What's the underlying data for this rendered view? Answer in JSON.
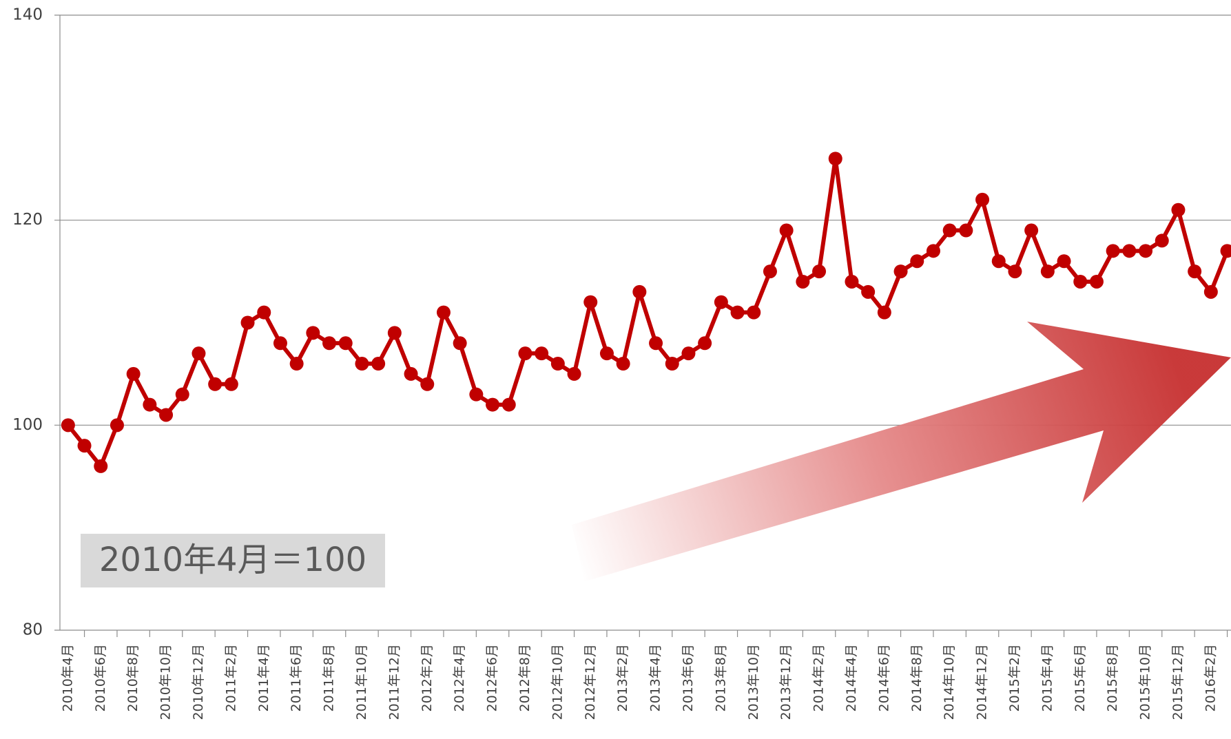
{
  "chart_data": {
    "type": "line",
    "annotation": "2010年4月＝100",
    "categories": [
      "2010年4月",
      null,
      "2010年6月",
      null,
      "2010年8月",
      null,
      "2010年10月",
      null,
      "2010年12月",
      null,
      "2011年2月",
      null,
      "2011年4月",
      null,
      "2011年6月",
      null,
      "2011年8月",
      null,
      "2011年10月",
      null,
      "2011年12月",
      null,
      "2012年2月",
      null,
      "2012年4月",
      null,
      "2012年6月",
      null,
      "2012年8月",
      null,
      "2012年10月",
      null,
      "2012年12月",
      null,
      "2013年2月",
      null,
      "2013年4月",
      null,
      "2013年6月",
      null,
      "2013年8月",
      null,
      "2013年10月",
      null,
      "2013年12月",
      null,
      "2014年2月",
      null,
      "2014年4月",
      null,
      "2014年6月",
      null,
      "2014年8月",
      null,
      "2014年10月",
      null,
      "2014年12月",
      null,
      "2015年2月",
      null,
      "2015年4月",
      null,
      "2015年6月",
      null,
      "2015年8月",
      null,
      "2015年10月",
      null,
      "2015年12月",
      null,
      "2016年2月",
      null
    ],
    "values": [
      100,
      98,
      96,
      100,
      105,
      102,
      101,
      103,
      107,
      104,
      104,
      110,
      111,
      108,
      106,
      109,
      108,
      108,
      106,
      106,
      109,
      105,
      104,
      111,
      108,
      103,
      102,
      102,
      107,
      107,
      106,
      105,
      112,
      107,
      106,
      113,
      108,
      106,
      107,
      108,
      112,
      111,
      111,
      115,
      119,
      114,
      115,
      126,
      114,
      113,
      111,
      115,
      116,
      117,
      119,
      119,
      122,
      116,
      115,
      119,
      115,
      116,
      114,
      114,
      117,
      117,
      117,
      118,
      121,
      115,
      113,
      117
    ],
    "color": "#c00000",
    "ylim": [
      80,
      140
    ],
    "yticks": [
      80,
      100,
      120,
      140
    ],
    "grid": true
  }
}
